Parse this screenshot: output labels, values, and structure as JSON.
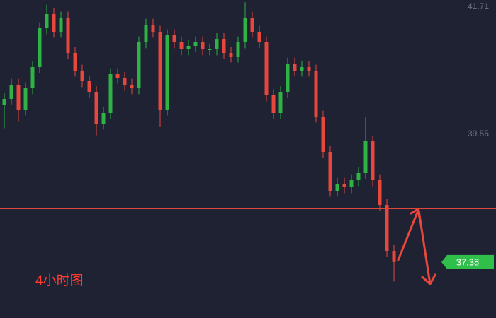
{
  "chart_data": {
    "type": "candlestick",
    "annotation": "4小时图",
    "ylim": [
      36.43,
      41.83
    ],
    "yticks": [
      41.71,
      39.55
    ],
    "up_color": "#2fb344",
    "down_color": "#e8473c",
    "level_line": 38.29,
    "level_color": "#e0473a",
    "last_price": 37.38,
    "last_price_color": "#2fbf4a",
    "open": [
      40.05,
      40.15,
      40.39,
      39.97,
      40.33,
      40.69,
      41.35,
      41.59,
      41.29,
      41.53,
      40.93,
      40.63,
      40.45,
      40.27,
      39.73,
      39.91,
      40.57,
      40.51,
      40.39,
      40.33,
      41.11,
      41.41,
      41.29,
      39.97,
      41.23,
      41.11,
      40.99,
      41.05,
      41.11,
      40.99,
      40.99,
      41.17,
      40.93,
      40.87,
      41.11,
      41.53,
      41.29,
      41.11,
      40.21,
      39.91,
      40.27,
      40.75,
      40.63,
      40.69,
      40.63,
      39.85,
      39.25,
      38.59,
      38.71,
      38.65,
      38.77,
      38.89,
      39.43,
      38.77,
      38.35,
      37.57
    ],
    "high": [
      40.25,
      40.49,
      40.49,
      40.43,
      40.79,
      41.45,
      41.75,
      41.69,
      41.63,
      41.63,
      41.03,
      40.73,
      40.55,
      40.37,
      40.01,
      40.67,
      40.67,
      40.61,
      40.49,
      41.21,
      41.51,
      41.51,
      41.39,
      41.33,
      41.33,
      41.21,
      41.15,
      41.21,
      41.21,
      41.09,
      41.27,
      41.27,
      41.03,
      41.21,
      41.79,
      41.63,
      41.39,
      41.21,
      40.31,
      40.37,
      40.85,
      40.85,
      40.79,
      40.79,
      40.73,
      39.95,
      39.35,
      38.81,
      38.81,
      38.87,
      38.99,
      39.85,
      39.53,
      38.87,
      38.45,
      37.67
    ],
    "low": [
      39.65,
      40.05,
      39.77,
      39.87,
      40.23,
      40.59,
      41.25,
      41.19,
      41.19,
      40.83,
      40.53,
      40.35,
      40.17,
      39.53,
      39.63,
      39.81,
      40.41,
      40.29,
      40.23,
      40.23,
      41.01,
      41.19,
      39.67,
      39.87,
      41.01,
      40.89,
      40.89,
      40.95,
      40.89,
      40.89,
      40.89,
      40.83,
      40.77,
      40.77,
      41.01,
      41.19,
      41.01,
      40.11,
      39.81,
      39.81,
      40.17,
      40.53,
      40.53,
      40.53,
      39.75,
      39.15,
      38.49,
      38.49,
      38.55,
      38.55,
      38.67,
      38.79,
      38.67,
      38.25,
      37.47,
      37.05
    ],
    "close": [
      40.15,
      40.39,
      39.97,
      40.33,
      40.69,
      41.35,
      41.59,
      41.29,
      41.53,
      40.93,
      40.63,
      40.45,
      40.27,
      39.73,
      39.91,
      40.57,
      40.51,
      40.39,
      40.33,
      41.11,
      41.41,
      41.29,
      39.97,
      41.23,
      41.11,
      40.99,
      41.05,
      41.11,
      40.99,
      40.99,
      41.17,
      40.93,
      40.87,
      41.11,
      41.53,
      41.29,
      41.11,
      40.21,
      39.91,
      40.27,
      40.75,
      40.63,
      40.69,
      40.63,
      39.85,
      39.25,
      38.59,
      38.71,
      38.65,
      38.77,
      38.89,
      39.43,
      38.77,
      38.35,
      37.57,
      37.38
    ]
  }
}
